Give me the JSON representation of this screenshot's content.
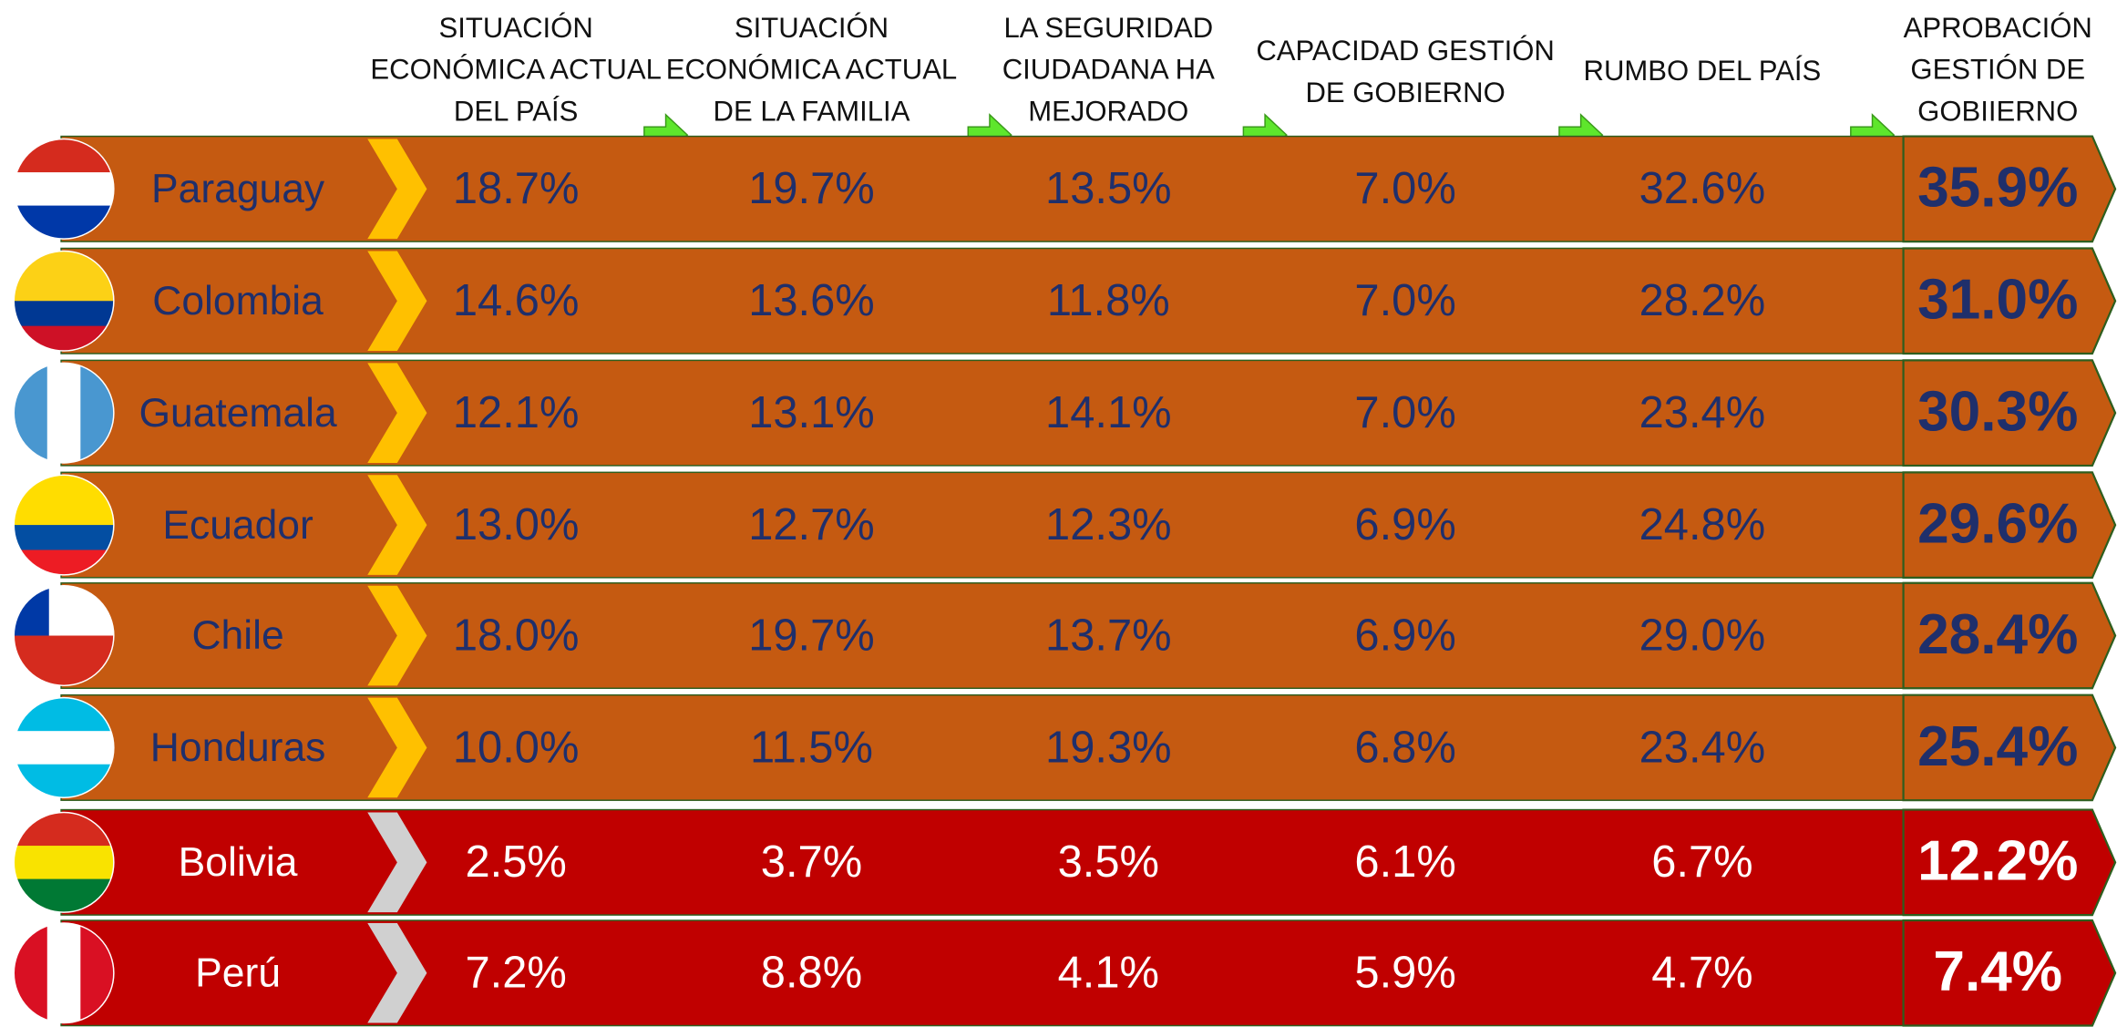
{
  "table": {
    "columns": [
      [
        "SITUACIÓN",
        "ECONÓMICA ACTUAL",
        "DEL PAÍS"
      ],
      [
        "SITUACIÓN",
        "ECONÓMICA ACTUAL",
        "DE LA FAMILIA"
      ],
      [
        "LA SEGURIDAD",
        "CIUDADANA HA",
        "MEJORADO"
      ],
      [
        "CAPACIDAD GESTIÓN",
        "DE GOBIERNO"
      ],
      [
        "RUMBO DEL PAÍS"
      ],
      [
        "APROBACIÓN",
        "GESTIÓN DE",
        "GOBIIERNO"
      ]
    ],
    "rows": [
      {
        "country": "Paraguay",
        "values": [
          "18.7%",
          "19.7%",
          "13.5%",
          "7.0%",
          "32.6%"
        ],
        "approval": "35.9%"
      },
      {
        "country": "Colombia",
        "values": [
          "14.6%",
          "13.6%",
          "11.8%",
          "7.0%",
          "28.2%"
        ],
        "approval": "31.0%"
      },
      {
        "country": "Guatemala",
        "values": [
          "12.1%",
          "13.1%",
          "14.1%",
          "7.0%",
          "23.4%"
        ],
        "approval": "30.3%"
      },
      {
        "country": "Ecuador",
        "values": [
          "13.0%",
          "12.7%",
          "12.3%",
          "6.9%",
          "24.8%"
        ],
        "approval": "29.6%"
      },
      {
        "country": "Chile",
        "values": [
          "18.0%",
          "19.7%",
          "13.7%",
          "6.9%",
          "29.0%"
        ],
        "approval": "28.4%"
      },
      {
        "country": "Honduras",
        "values": [
          "10.0%",
          "11.5%",
          "19.3%",
          "6.8%",
          "23.4%"
        ],
        "approval": "25.4%"
      },
      {
        "country": "Bolivia",
        "values": [
          "2.5%",
          "3.7%",
          "3.5%",
          "6.1%",
          "6.7%"
        ],
        "approval": "12.2%"
      },
      {
        "country": "Perú",
        "values": [
          "7.2%",
          "8.8%",
          "4.1%",
          "5.9%",
          "4.7%"
        ],
        "approval": "7.4%"
      }
    ]
  }
}
